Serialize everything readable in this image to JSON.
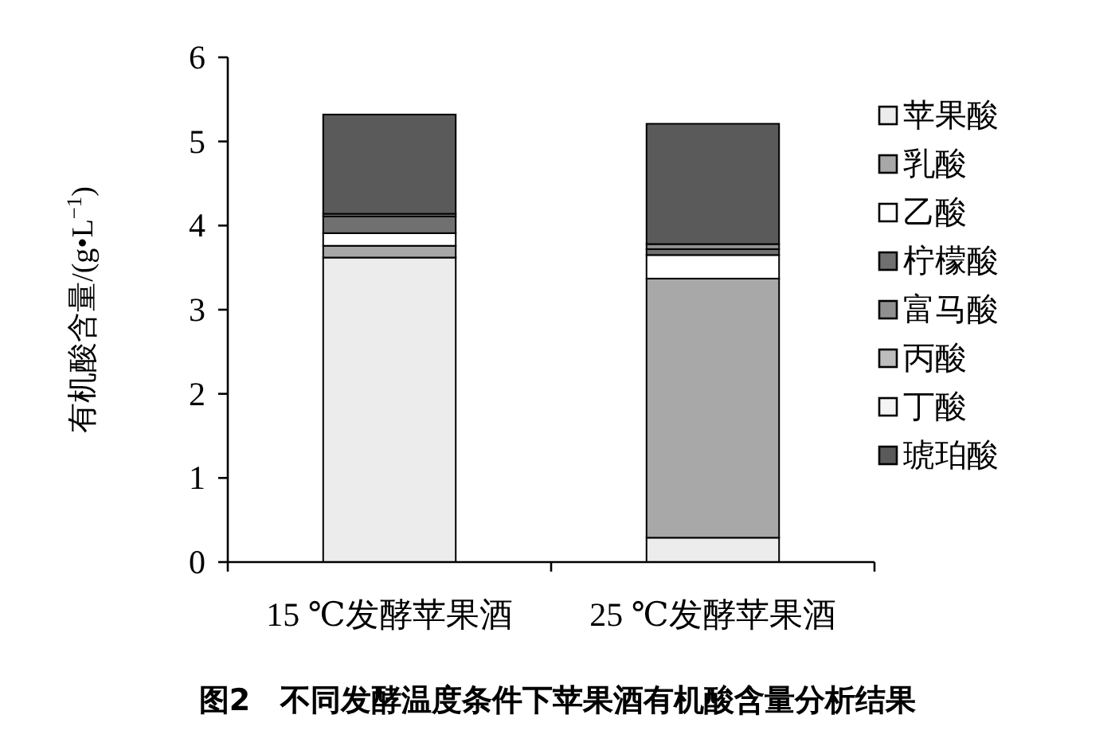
{
  "chart_data": {
    "type": "bar",
    "stacked": true,
    "title": "图2　不同发酵温度条件下苹果酒有机酸含量分析结果",
    "ylabel": "有机酸含量/(g•L$^{−1}$)",
    "categories": [
      "15 ℃发酵苹果酒",
      "25 ℃发酵苹果酒"
    ],
    "ylim": [
      0,
      6
    ],
    "yticks": [
      0,
      1,
      2,
      3,
      4,
      5,
      6
    ],
    "grid": false,
    "legend": "right",
    "series": [
      {
        "name": "苹果酸",
        "color": "#ececec",
        "values": [
          3.62,
          0.29
        ]
      },
      {
        "name": "乳酸",
        "color": "#a8a8a8",
        "values": [
          0.14,
          3.08
        ]
      },
      {
        "name": "乙酸",
        "color": "#ffffff",
        "values": [
          0.15,
          0.28
        ]
      },
      {
        "name": "柠檬酸",
        "color": "#707070",
        "values": [
          0.2,
          0.07
        ]
      },
      {
        "name": "富马酸",
        "color": "#909090",
        "values": [
          0.03,
          0.06
        ]
      },
      {
        "name": "丙酸",
        "color": "#bdbdbd",
        "values": [
          null,
          null
        ]
      },
      {
        "name": "丁酸",
        "color": "#f4f4f4",
        "values": [
          null,
          null
        ]
      },
      {
        "name": "琥珀酸",
        "color": "#5a5a5a",
        "values": [
          1.18,
          1.43
        ]
      }
    ]
  }
}
